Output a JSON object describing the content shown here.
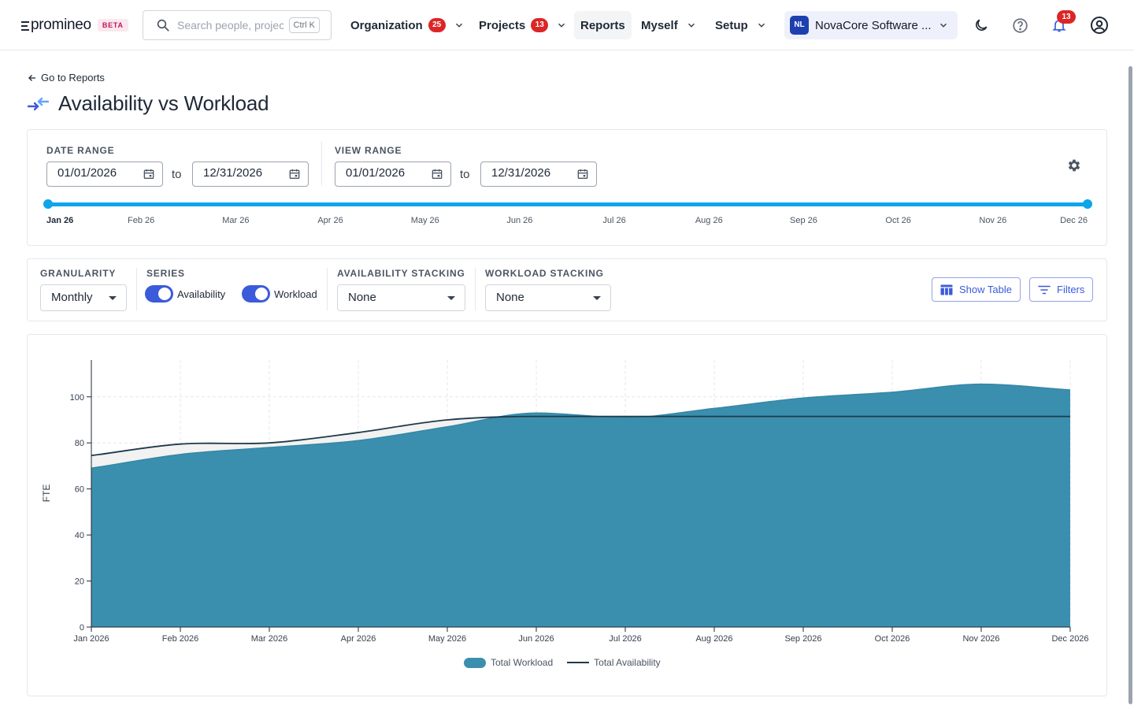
{
  "brand": {
    "name": "promineo",
    "badge": "BETA"
  },
  "search": {
    "placeholder": "Search people, projects...",
    "shortcut": "Ctrl K"
  },
  "nav": {
    "organization": {
      "label": "Organization",
      "badge": "25"
    },
    "projects": {
      "label": "Projects",
      "badge": "13"
    },
    "reports": {
      "label": "Reports"
    },
    "myself": {
      "label": "Myself"
    },
    "setup": {
      "label": "Setup"
    }
  },
  "org": {
    "initials": "NL",
    "name": "NovaCore Software ..."
  },
  "notifications": {
    "count": "13"
  },
  "page": {
    "back_label": "Go to Reports",
    "title": "Availability vs Workload"
  },
  "date_range": {
    "label": "DATE RANGE",
    "from": "01/01/2026",
    "to_word": "to",
    "to": "12/31/2026"
  },
  "view_range": {
    "label": "VIEW RANGE",
    "from": "01/01/2026",
    "to_word": "to",
    "to": "12/31/2026"
  },
  "timeline": {
    "months": [
      "Jan 26",
      "Feb 26",
      "Mar 26",
      "Apr 26",
      "May 26",
      "Jun 26",
      "Jul 26",
      "Aug 26",
      "Sep 26",
      "Oct 26",
      "Nov 26",
      "Dec 26"
    ]
  },
  "controls": {
    "granularity": {
      "label": "GRANULARITY",
      "value": "Monthly"
    },
    "series": {
      "label": "SERIES",
      "availability": "Availability",
      "workload": "Workload"
    },
    "availability_stacking": {
      "label": "AVAILABILITY STACKING",
      "value": "None"
    },
    "workload_stacking": {
      "label": "WORKLOAD STACKING",
      "value": "None"
    },
    "show_table": "Show Table",
    "filters": "Filters"
  },
  "colors": {
    "accent": "#3b5bdb",
    "timeline": "#0ea5e9",
    "workload_fill": "#3b8fae",
    "availability_line": "#1e3a4a",
    "badge": "#dc2626"
  },
  "chart_data": {
    "type": "area",
    "x": [
      "Jan 2026",
      "Feb 2026",
      "Mar 2026",
      "Apr 2026",
      "May 2026",
      "Jun 2026",
      "Jul 2026",
      "Aug 2026",
      "Sep 2026",
      "Oct 2026",
      "Nov 2026",
      "Dec 2026"
    ],
    "series": [
      {
        "name": "Total Workload",
        "type": "area",
        "values": [
          69,
          75,
          78,
          81,
          87,
          93,
          91,
          95,
          99.5,
          102,
          105.5,
          103
        ]
      },
      {
        "name": "Total Availability",
        "type": "line",
        "values": [
          74.5,
          79.5,
          80,
          84.5,
          90,
          91.5,
          91.5,
          91.5,
          91.5,
          91.5,
          91.5,
          91.5
        ]
      }
    ],
    "ylabel": "FTE",
    "xlabel": "",
    "ylim": [
      0,
      116
    ],
    "yticks": [
      0,
      20,
      40,
      60,
      80,
      100
    ],
    "grid": true,
    "legend": "bottom-center"
  }
}
